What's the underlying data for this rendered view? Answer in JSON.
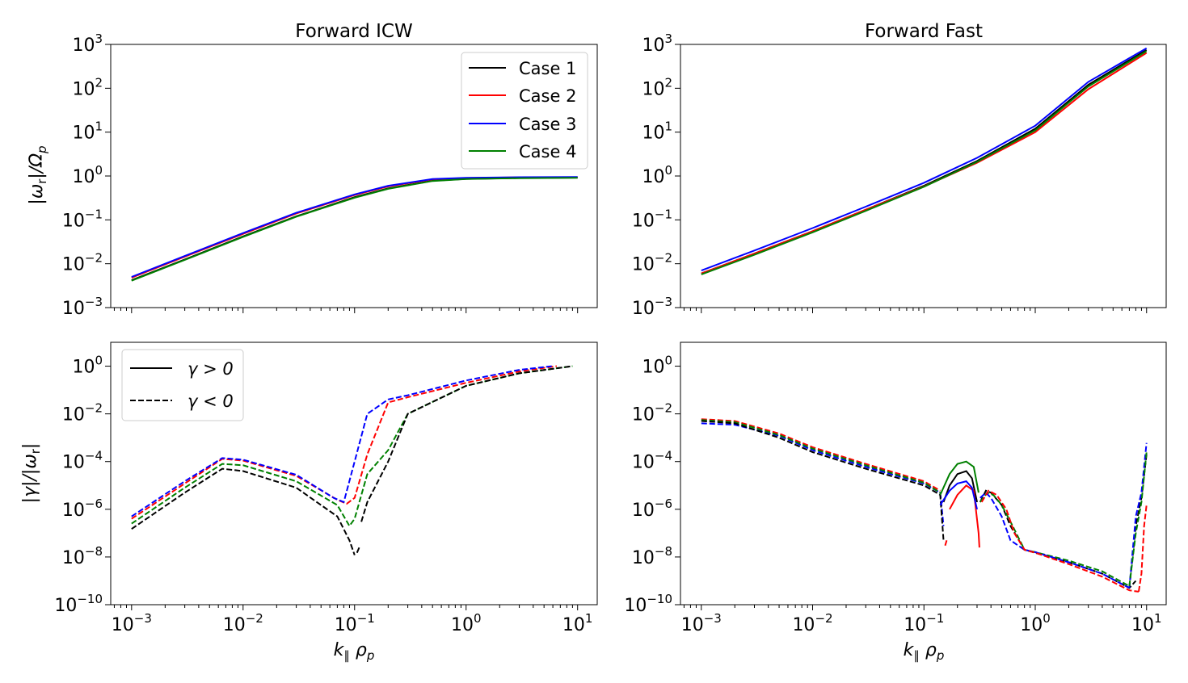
{
  "figure": {
    "xlabel": "k∥ ρp",
    "ylabel_top": "|ωr|/Ωp",
    "ylabel_bottom": "|γ|/|ωr|"
  },
  "colors": {
    "case1": "#000000",
    "case2": "#ff0000",
    "case3": "#0000ff",
    "case4": "#008000"
  },
  "chart_data": [
    {
      "id": "top-left",
      "type": "line",
      "title": "Forward ICW",
      "xscale": "log",
      "yscale": "log",
      "xlim": [
        0.00065,
        15
      ],
      "ylim": [
        0.001,
        1000
      ],
      "xticks": [
        "10^-3",
        "10^-2",
        "10^-1",
        "10^0",
        "10^1"
      ],
      "yticks": [
        "10^-3",
        "10^-2",
        "10^-1",
        "10^0",
        "10^1",
        "10^2",
        "10^3"
      ],
      "show_xticklabels": false,
      "legend": {
        "position": "top-right",
        "entries": [
          "Case 1",
          "Case 2",
          "Case 3",
          "Case 4"
        ]
      },
      "series": [
        {
          "name": "Case 1",
          "color": "#000000",
          "dash": false,
          "x": [
            0.001,
            0.003,
            0.01,
            0.03,
            0.1,
            0.2,
            0.5,
            1,
            3,
            10
          ],
          "y": [
            0.0042,
            0.0125,
            0.042,
            0.12,
            0.33,
            0.52,
            0.78,
            0.86,
            0.9,
            0.92
          ]
        },
        {
          "name": "Case 2",
          "color": "#ff0000",
          "dash": false,
          "x": [
            0.001,
            0.003,
            0.01,
            0.03,
            0.1,
            0.2,
            0.5,
            1,
            3,
            10
          ],
          "y": [
            0.0048,
            0.0145,
            0.048,
            0.14,
            0.37,
            0.58,
            0.84,
            0.9,
            0.93,
            0.94
          ]
        },
        {
          "name": "Case 3",
          "color": "#0000ff",
          "dash": false,
          "x": [
            0.001,
            0.003,
            0.01,
            0.03,
            0.1,
            0.2,
            0.5,
            1,
            3,
            10
          ],
          "y": [
            0.005,
            0.015,
            0.05,
            0.145,
            0.38,
            0.6,
            0.85,
            0.91,
            0.94,
            0.95
          ]
        },
        {
          "name": "Case 4",
          "color": "#008000",
          "dash": false,
          "x": [
            0.001,
            0.003,
            0.01,
            0.03,
            0.1,
            0.2,
            0.5,
            1,
            3,
            10
          ],
          "y": [
            0.0041,
            0.0122,
            0.041,
            0.118,
            0.32,
            0.51,
            0.77,
            0.85,
            0.89,
            0.91
          ]
        }
      ]
    },
    {
      "id": "top-right",
      "type": "line",
      "title": "Forward Fast",
      "xscale": "log",
      "yscale": "log",
      "xlim": [
        0.00065,
        15
      ],
      "ylim": [
        0.001,
        1000
      ],
      "xticks": [
        "10^-3",
        "10^-2",
        "10^-1",
        "10^0",
        "10^1"
      ],
      "yticks": [
        "10^-3",
        "10^-2",
        "10^-1",
        "10^0",
        "10^1",
        "10^2",
        "10^3"
      ],
      "show_xticklabels": false,
      "series": [
        {
          "name": "Case 1",
          "color": "#000000",
          "dash": false,
          "x": [
            0.001,
            0.003,
            0.01,
            0.03,
            0.1,
            0.3,
            1,
            3,
            10
          ],
          "y": [
            0.006,
            0.017,
            0.055,
            0.17,
            0.6,
            2.2,
            12,
            120,
            750
          ]
        },
        {
          "name": "Case 2",
          "color": "#ff0000",
          "dash": false,
          "x": [
            0.001,
            0.003,
            0.01,
            0.03,
            0.1,
            0.3,
            1,
            3,
            10
          ],
          "y": [
            0.006,
            0.017,
            0.055,
            0.17,
            0.58,
            2.0,
            10,
            95,
            640
          ]
        },
        {
          "name": "Case 3",
          "color": "#0000ff",
          "dash": false,
          "x": [
            0.001,
            0.003,
            0.01,
            0.03,
            0.1,
            0.3,
            1,
            3,
            10
          ],
          "y": [
            0.007,
            0.02,
            0.065,
            0.2,
            0.7,
            2.6,
            14,
            140,
            820
          ]
        },
        {
          "name": "Case 4",
          "color": "#008000",
          "dash": false,
          "x": [
            0.001,
            0.003,
            0.01,
            0.03,
            0.1,
            0.3,
            1,
            3,
            10
          ],
          "y": [
            0.0057,
            0.016,
            0.052,
            0.16,
            0.57,
            2.1,
            11,
            110,
            700
          ]
        }
      ]
    },
    {
      "id": "bottom-left",
      "type": "line",
      "title": "",
      "xscale": "log",
      "yscale": "log",
      "xlim": [
        0.00065,
        15
      ],
      "ylim": [
        1e-10,
        10
      ],
      "xticks": [
        "10^-3",
        "10^-2",
        "10^-1",
        "10^0",
        "10^1"
      ],
      "yticks": [
        "10^-10",
        "10^-8",
        "10^-6",
        "10^-4",
        "10^-2",
        "10^0"
      ],
      "show_xticklabels": true,
      "legend": {
        "position": "top-left",
        "entries": [
          "γ > 0",
          "γ < 0"
        ]
      },
      "series": [
        {
          "name": "Case 2",
          "color": "#ff0000",
          "dash": true,
          "x": [
            0.001,
            0.003,
            0.0065,
            0.01,
            0.03,
            0.07,
            0.085,
            0.1,
            0.13,
            0.2,
            0.3,
            1,
            3,
            6.5
          ],
          "y": [
            4e-07,
            1.2e-05,
            0.00013,
            0.00011,
            2.5e-05,
            2.5e-06,
            1.7e-06,
            3e-06,
            0.0002,
            0.03,
            0.05,
            0.2,
            0.6,
            1.0
          ]
        },
        {
          "name": "Case 3",
          "color": "#0000ff",
          "dash": true,
          "x": [
            0.001,
            0.003,
            0.0065,
            0.01,
            0.03,
            0.065,
            0.08,
            0.1,
            0.13,
            0.2,
            0.3,
            1,
            3,
            6
          ],
          "y": [
            5e-07,
            1.5e-05,
            0.00014,
            0.00012,
            2.8e-05,
            3e-06,
            2e-06,
            0.0001,
            0.01,
            0.04,
            0.06,
            0.25,
            0.7,
            1.0
          ]
        },
        {
          "name": "Case 4",
          "color": "#008000",
          "dash": true,
          "x": [
            0.001,
            0.003,
            0.0065,
            0.01,
            0.03,
            0.07,
            0.09,
            0.1,
            0.13,
            0.2,
            0.3,
            1,
            3,
            9
          ],
          "y": [
            2.5e-07,
            8e-06,
            8e-05,
            7e-05,
            1.5e-05,
            1.5e-06,
            2e-07,
            4e-07,
            3e-05,
            0.0003,
            0.01,
            0.15,
            0.5,
            1.0
          ]
        },
        {
          "name": "Case 1",
          "color": "#000000",
          "dash": true,
          "x": [
            0.001,
            0.003,
            0.0065,
            0.01,
            0.03,
            0.07,
            0.09,
            0.1
          ],
          "y": [
            1.5e-07,
            5e-06,
            5e-05,
            4e-05,
            8e-06,
            5e-07,
            5e-08,
            1.2e-08
          ]
        },
        {
          "name": "Case 1",
          "color": "#000000",
          "dash": true,
          "x": [
            0.105,
            0.11
          ],
          "y": [
            1.5e-08,
            2.5e-08
          ]
        },
        {
          "name": "Case 1",
          "color": "#000000",
          "dash": true,
          "x": [
            0.115,
            0.13,
            0.2,
            0.3,
            1,
            3,
            9
          ],
          "y": [
            3e-07,
            2e-06,
            0.0001,
            0.01,
            0.15,
            0.5,
            1.0
          ]
        }
      ]
    },
    {
      "id": "bottom-right",
      "type": "line",
      "title": "",
      "xscale": "log",
      "yscale": "log",
      "xlim": [
        0.00065,
        15
      ],
      "ylim": [
        1e-10,
        10
      ],
      "xticks": [
        "10^-3",
        "10^-2",
        "10^-1",
        "10^0",
        "10^1"
      ],
      "yticks": [
        "10^-10",
        "10^-8",
        "10^-6",
        "10^-4",
        "10^-2",
        "10^0"
      ],
      "show_xticklabels": true,
      "series": [
        {
          "name": "Case 2",
          "color": "#ff0000",
          "dash": true,
          "x": [
            0.001,
            0.002,
            0.005,
            0.01,
            0.03,
            0.1,
            0.14
          ],
          "y": [
            0.006,
            0.005,
            0.0015,
            0.0004,
            8e-05,
            1.5e-05,
            6e-06
          ]
        },
        {
          "name": "Case 3",
          "color": "#0000ff",
          "dash": true,
          "x": [
            0.001,
            0.002,
            0.005,
            0.01,
            0.03,
            0.1,
            0.14,
            0.15
          ],
          "y": [
            0.004,
            0.0035,
            0.0012,
            0.0003,
            6e-05,
            1.2e-05,
            5e-06,
            2e-07
          ]
        },
        {
          "name": "Case 4",
          "color": "#008000",
          "dash": true,
          "x": [
            0.001,
            0.002,
            0.005,
            0.01,
            0.03,
            0.1,
            0.14
          ],
          "y": [
            0.0055,
            0.0045,
            0.0013,
            0.00035,
            7e-05,
            1.3e-05,
            5e-06
          ]
        },
        {
          "name": "Case 1",
          "color": "#000000",
          "dash": true,
          "x": [
            0.001,
            0.002,
            0.005,
            0.01,
            0.03,
            0.1,
            0.14,
            0.15
          ],
          "y": [
            0.005,
            0.004,
            0.001,
            0.00025,
            5e-05,
            1e-05,
            4e-06,
            5e-08
          ]
        },
        {
          "name": "Case 2",
          "color": "#ff0000",
          "dash": true,
          "x": [
            0.155,
            0.16
          ],
          "y": [
            3e-08,
            5e-08
          ]
        },
        {
          "name": "Case 1",
          "color": "#000000",
          "dash": false,
          "x": [
            0.15,
            0.17,
            0.2,
            0.24,
            0.27,
            0.3
          ],
          "y": [
            2e-06,
            1e-05,
            3e-05,
            4e-05,
            2e-05,
            2e-06
          ]
        },
        {
          "name": "Case 2",
          "color": "#ff0000",
          "dash": false,
          "x": [
            0.17,
            0.2,
            0.24,
            0.28,
            0.31,
            0.315
          ],
          "y": [
            1e-06,
            4e-06,
            1e-05,
            6e-06,
            1e-07,
            2.5e-08
          ]
        },
        {
          "name": "Case 3",
          "color": "#0000ff",
          "dash": false,
          "x": [
            0.14,
            0.17,
            0.2,
            0.24,
            0.27,
            0.3
          ],
          "y": [
            1.5e-06,
            6e-06,
            1.2e-05,
            1.5e-05,
            8e-06,
            1e-06
          ]
        },
        {
          "name": "Case 4",
          "color": "#008000",
          "dash": false,
          "x": [
            0.14,
            0.17,
            0.2,
            0.24,
            0.28,
            0.31
          ],
          "y": [
            4e-06,
            3e-05,
            8e-05,
            0.0001,
            6e-05,
            5e-06
          ]
        },
        {
          "name": "Case 1",
          "color": "#000000",
          "dash": true,
          "x": [
            0.32,
            0.36,
            0.4,
            0.5,
            0.6,
            0.8,
            1,
            2,
            4,
            7,
            8
          ],
          "y": [
            2e-06,
            6e-06,
            5e-06,
            1.5e-06,
            2e-07,
            2e-08,
            1.5e-08,
            6e-09,
            2e-09,
            5e-10,
            1e-09
          ]
        },
        {
          "name": "Case 4",
          "color": "#008000",
          "dash": true,
          "x": [
            0.32,
            0.37,
            0.42,
            0.5,
            0.6,
            0.8,
            1,
            2,
            4,
            7
          ],
          "y": [
            2e-06,
            5e-06,
            4e-06,
            1.5e-06,
            3e-07,
            2e-08,
            1.6e-08,
            7e-09,
            2.5e-09,
            6e-10
          ]
        },
        {
          "name": "Case 3",
          "color": "#0000ff",
          "dash": true,
          "x": [
            0.32,
            0.36,
            0.4,
            0.5,
            0.6,
            0.8,
            1,
            2,
            4,
            7
          ],
          "y": [
            3e-06,
            5e-06,
            3e-06,
            5e-07,
            5e-08,
            2e-08,
            1.6e-08,
            6e-09,
            2e-09,
            5e-10
          ]
        },
        {
          "name": "Case 2",
          "color": "#ff0000",
          "dash": true,
          "x": [
            0.33,
            0.38,
            0.45,
            0.55,
            0.65,
            0.8,
            1,
            2,
            4,
            7,
            8.5
          ],
          "y": [
            2e-06,
            6e-06,
            4e-06,
            1e-06,
            1e-07,
            2e-08,
            1.5e-08,
            5e-09,
            1.5e-09,
            4e-10,
            3.5e-10
          ]
        },
        {
          "name": "Case 1",
          "color": "#000000",
          "dash": true,
          "x": [
            7,
            8,
            9,
            10
          ],
          "y": [
            5e-10,
            2e-07,
            3e-06,
            0.0002
          ]
        },
        {
          "name": "Case 3",
          "color": "#0000ff",
          "dash": true,
          "x": [
            7,
            8,
            9,
            10
          ],
          "y": [
            5e-10,
            5e-07,
            5e-06,
            0.0006
          ]
        },
        {
          "name": "Case 4",
          "color": "#008000",
          "dash": true,
          "x": [
            7,
            8,
            9,
            10
          ],
          "y": [
            6e-10,
            1e-07,
            2e-06,
            0.00025
          ]
        },
        {
          "name": "Case 2",
          "color": "#ff0000",
          "dash": true,
          "x": [
            8.5,
            9,
            9.5,
            10
          ],
          "y": [
            3.5e-10,
            2e-09,
            2e-07,
            1.5e-06
          ]
        }
      ]
    }
  ]
}
